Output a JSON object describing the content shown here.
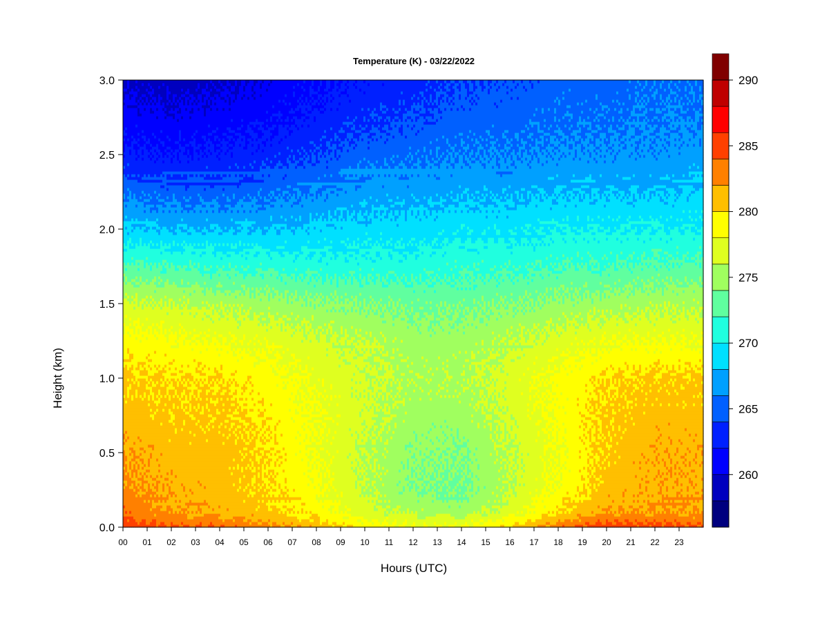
{
  "chart_data": {
    "type": "heatmap",
    "title": "Temperature (K) - 03/22/2022",
    "xlabel": "Hours (UTC)",
    "ylabel": "Height (km)",
    "x_ticks": [
      "00",
      "01",
      "02",
      "03",
      "04",
      "05",
      "06",
      "07",
      "08",
      "09",
      "10",
      "11",
      "12",
      "13",
      "14",
      "15",
      "16",
      "17",
      "18",
      "19",
      "20",
      "21",
      "22",
      "23"
    ],
    "y_ticks": [
      "0.0",
      "0.5",
      "1.0",
      "1.5",
      "2.0",
      "2.5",
      "3.0"
    ],
    "xlim": [
      0,
      24
    ],
    "ylim": [
      0.0,
      3.0
    ],
    "colorbar": {
      "min": 256,
      "max": 290,
      "step": 2,
      "tick_values": [
        260,
        265,
        270,
        275,
        280,
        285,
        290
      ],
      "tick_labels": [
        "260",
        "265",
        "270",
        "275",
        "280",
        "285",
        "290"
      ],
      "colors": [
        "#00007f",
        "#0000bf",
        "#0000ff",
        "#0020ff",
        "#0060ff",
        "#00a0ff",
        "#00e0ff",
        "#20ffdf",
        "#60ff9f",
        "#a0ff5f",
        "#dfff20",
        "#ffff00",
        "#ffbf00",
        "#ff8000",
        "#ff4000",
        "#ff0000",
        "#bf0000",
        "#800000"
      ]
    },
    "profile_heights_km": [
      0.0,
      0.05,
      0.1,
      0.25,
      0.5,
      0.75,
      1.0,
      1.25,
      1.5,
      1.75,
      2.0,
      2.25,
      2.5,
      2.75,
      3.0
    ],
    "profiles": [
      {
        "hour": 0,
        "temps_k": [
          285.5,
          284.5,
          283.5,
          282.5,
          282.0,
          281.0,
          280.5,
          279.0,
          276.5,
          272.5,
          268.5,
          265.5,
          262.5,
          261.0,
          259.5
        ]
      },
      {
        "hour": 2,
        "temps_k": [
          284.5,
          283.0,
          282.0,
          281.5,
          281.0,
          280.5,
          280.0,
          278.5,
          276.0,
          272.0,
          268.0,
          265.0,
          262.0,
          260.5,
          259.0
        ]
      },
      {
        "hour": 4,
        "temps_k": [
          284.0,
          282.5,
          281.5,
          281.0,
          281.0,
          280.5,
          280.0,
          278.0,
          275.5,
          271.5,
          268.0,
          265.0,
          262.5,
          261.0,
          259.5
        ]
      },
      {
        "hour": 6,
        "temps_k": [
          283.0,
          281.5,
          280.5,
          280.0,
          280.0,
          279.5,
          279.0,
          277.5,
          275.0,
          271.5,
          268.0,
          265.5,
          263.0,
          261.5,
          260.5
        ]
      },
      {
        "hour": 8,
        "temps_k": [
          281.5,
          280.0,
          279.0,
          278.5,
          278.0,
          278.0,
          277.5,
          276.5,
          274.5,
          271.0,
          268.5,
          266.0,
          264.0,
          262.5,
          261.5
        ]
      },
      {
        "hour": 10,
        "temps_k": [
          279.5,
          278.0,
          277.0,
          276.0,
          276.0,
          276.5,
          276.5,
          276.0,
          274.0,
          271.0,
          269.0,
          267.0,
          265.0,
          263.5,
          262.5
        ]
      },
      {
        "hour": 12,
        "temps_k": [
          278.0,
          277.0,
          275.5,
          274.0,
          274.5,
          275.0,
          275.5,
          275.0,
          273.5,
          271.0,
          269.0,
          267.0,
          265.5,
          264.0,
          263.0
        ]
      },
      {
        "hour": 14,
        "temps_k": [
          278.0,
          277.0,
          275.0,
          273.5,
          274.0,
          275.0,
          275.5,
          275.0,
          273.5,
          271.5,
          269.5,
          267.5,
          266.0,
          265.0,
          264.0
        ]
      },
      {
        "hour": 16,
        "temps_k": [
          280.5,
          278.5,
          277.0,
          276.0,
          276.0,
          276.5,
          277.0,
          276.0,
          274.0,
          271.5,
          269.5,
          267.5,
          266.0,
          265.0,
          264.5
        ]
      },
      {
        "hour": 18,
        "temps_k": [
          283.5,
          281.5,
          280.0,
          278.5,
          278.0,
          278.5,
          278.5,
          277.0,
          274.5,
          272.0,
          270.0,
          268.0,
          266.5,
          265.5,
          265.0
        ]
      },
      {
        "hour": 20,
        "temps_k": [
          285.5,
          283.5,
          282.0,
          281.0,
          280.5,
          280.5,
          280.0,
          278.0,
          275.0,
          272.0,
          270.0,
          268.0,
          266.5,
          265.5,
          265.0
        ]
      },
      {
        "hour": 22,
        "temps_k": [
          285.0,
          283.5,
          282.0,
          281.5,
          281.5,
          281.0,
          280.5,
          278.0,
          275.5,
          272.5,
          270.0,
          268.0,
          266.5,
          266.0,
          265.5
        ]
      },
      {
        "hour": 24,
        "temps_k": [
          284.5,
          283.0,
          282.0,
          281.5,
          281.5,
          281.0,
          280.5,
          278.0,
          275.5,
          272.5,
          270.0,
          268.5,
          267.0,
          266.0,
          265.5
        ]
      }
    ]
  }
}
